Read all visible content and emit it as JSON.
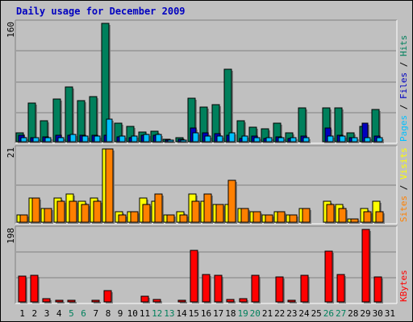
{
  "title": "Daily usage for December 2009",
  "colors": {
    "background": "#c0c0c0",
    "title": "#0000c0",
    "hits": "#00805c",
    "files": "#0000c0",
    "pages": "#00c0ff",
    "visits": "#ffff00",
    "sites": "#ff8000",
    "kbytes": "#ff0000",
    "weekend_label": "#00805c",
    "weekday_label": "#000000"
  },
  "chart_data": [
    {
      "type": "bar",
      "panel": "hits-files-pages",
      "ymax_label": "160",
      "ylim": [
        0,
        160
      ],
      "legend": [
        {
          "text": "Pages",
          "color": "#00c0ff"
        },
        {
          "text": " / ",
          "color": "#000000"
        },
        {
          "text": "Files",
          "color": "#0000c0"
        },
        {
          "text": " / ",
          "color": "#000000"
        },
        {
          "text": "Hits",
          "color": "#00805c"
        }
      ],
      "categories": [
        "1",
        "2",
        "3",
        "4",
        "5",
        "6",
        "7",
        "8",
        "9",
        "10",
        "11",
        "12",
        "13",
        "14",
        "15",
        "16",
        "17",
        "18",
        "19",
        "20",
        "21",
        "22",
        "23",
        "24",
        "25",
        "26",
        "27",
        "28",
        "29",
        "30",
        "31"
      ],
      "series": [
        {
          "name": "Hits",
          "color": "#00805c",
          "values": [
            12,
            52,
            28,
            58,
            74,
            56,
            61,
            160,
            25,
            21,
            13,
            14,
            3,
            5,
            59,
            47,
            50,
            98,
            28,
            20,
            17,
            25,
            12,
            46,
            0,
            46,
            46,
            12,
            21,
            43,
            0
          ]
        },
        {
          "name": "Files",
          "color": "#0000c0",
          "values": [
            9,
            5,
            6,
            9,
            9,
            9,
            9,
            9,
            6,
            5,
            9,
            9,
            2,
            3,
            19,
            12,
            11,
            9,
            4,
            8,
            4,
            7,
            4,
            8,
            0,
            19,
            9,
            5,
            25,
            8,
            0
          ]
        },
        {
          "name": "Pages",
          "color": "#00c0ff",
          "values": [
            5,
            5,
            5,
            5,
            10,
            8,
            8,
            30,
            8,
            8,
            10,
            10,
            2,
            2,
            12,
            8,
            8,
            12,
            8,
            5,
            5,
            5,
            5,
            5,
            0,
            8,
            8,
            5,
            5,
            5,
            0
          ]
        }
      ]
    },
    {
      "type": "bar",
      "panel": "visits-sites",
      "ymax_label": "21",
      "ylim": [
        0,
        21
      ],
      "legend": [
        {
          "text": "Sites",
          "color": "#ff8000"
        },
        {
          "text": " / ",
          "color": "#000000"
        },
        {
          "text": "Visits",
          "color": "#ffff00"
        }
      ],
      "categories": [
        "1",
        "2",
        "3",
        "4",
        "5",
        "6",
        "7",
        "8",
        "9",
        "10",
        "11",
        "12",
        "13",
        "14",
        "15",
        "16",
        "17",
        "18",
        "19",
        "20",
        "21",
        "22",
        "23",
        "24",
        "25",
        "26",
        "27",
        "28",
        "29",
        "30",
        "31"
      ],
      "series": [
        {
          "name": "Visits",
          "color": "#ffff00",
          "values": [
            2,
            7,
            4,
            7,
            8,
            6,
            7,
            21,
            3,
            3,
            7,
            6,
            2,
            3,
            8,
            6,
            5,
            5,
            4,
            3,
            2,
            3,
            2,
            4,
            0,
            6,
            5,
            1,
            4,
            6,
            0
          ]
        },
        {
          "name": "Sites",
          "color": "#ff8000",
          "values": [
            2,
            7,
            4,
            6,
            6,
            5,
            6,
            21,
            2,
            3,
            5,
            8,
            2,
            2,
            6,
            8,
            5,
            12,
            4,
            3,
            2,
            3,
            2,
            4,
            0,
            5,
            4,
            1,
            3,
            3,
            0
          ]
        }
      ]
    },
    {
      "type": "bar",
      "panel": "kbytes",
      "ymax_label": "198",
      "ylim": [
        0,
        198
      ],
      "legend": [
        {
          "text": "KBytes",
          "color": "#ff0000"
        }
      ],
      "categories": [
        "1",
        "2",
        "3",
        "4",
        "5",
        "6",
        "7",
        "8",
        "9",
        "10",
        "11",
        "12",
        "13",
        "14",
        "15",
        "16",
        "17",
        "18",
        "19",
        "20",
        "21",
        "22",
        "23",
        "24",
        "25",
        "26",
        "27",
        "28",
        "29",
        "30",
        "31"
      ],
      "weekend_days": [
        "5",
        "6",
        "12",
        "13",
        "19",
        "20",
        "26",
        "27"
      ],
      "series": [
        {
          "name": "KBytes",
          "color": "#ff0000",
          "values": [
            70,
            72,
            8,
            5,
            5,
            0,
            5,
            30,
            0,
            0,
            15,
            6,
            0,
            5,
            140,
            75,
            72,
            6,
            8,
            72,
            0,
            68,
            2,
            72,
            0,
            138,
            75,
            0,
            198,
            68,
            0
          ]
        }
      ]
    }
  ]
}
